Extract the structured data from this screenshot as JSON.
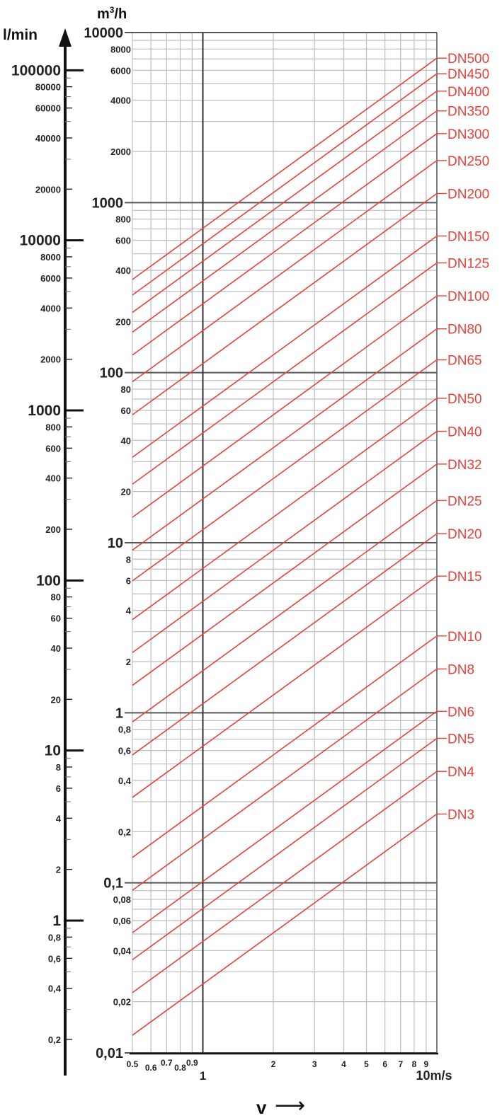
{
  "chart_data": {
    "type": "line",
    "x_scale": "log",
    "y_scale": "log",
    "xlim": [
      0.5,
      10
    ],
    "ylim": [
      0.01,
      10000
    ],
    "grid": true,
    "axes": {
      "flow_m3h_label": "m³/h",
      "flow_m3h_unit_base": "m",
      "flow_m3h_unit_sup": "3",
      "flow_m3h_unit_tail": "/h",
      "flow_lmin_label": "l/min",
      "velocity_label": "v",
      "velocity_arrow": "⟶"
    },
    "x_ticks": [
      {
        "v": 0.5,
        "label": "0.5"
      },
      {
        "v": 0.6,
        "label": "0.6"
      },
      {
        "v": 0.7,
        "label": "0.7"
      },
      {
        "v": 0.8,
        "label": "0.8"
      },
      {
        "v": 0.9,
        "label": "0.9"
      },
      {
        "v": 1,
        "label": "1"
      },
      {
        "v": 2,
        "label": "2"
      },
      {
        "v": 3,
        "label": "3"
      },
      {
        "v": 4,
        "label": "4"
      },
      {
        "v": 5,
        "label": "5"
      },
      {
        "v": 6,
        "label": "6"
      },
      {
        "v": 7,
        "label": "7"
      },
      {
        "v": 8,
        "label": "8"
      },
      {
        "v": 9,
        "label": "9"
      },
      {
        "v": 10,
        "label": "10m/s"
      }
    ],
    "y_ticks_m3h": [
      {
        "v": 10000,
        "label": "10000",
        "major": true
      },
      {
        "v": 8000,
        "label": "8000"
      },
      {
        "v": 6000,
        "label": "6000"
      },
      {
        "v": 4000,
        "label": "4000"
      },
      {
        "v": 2000,
        "label": "2000"
      },
      {
        "v": 1000,
        "label": "1000",
        "major": true
      },
      {
        "v": 800,
        "label": "800"
      },
      {
        "v": 600,
        "label": "600"
      },
      {
        "v": 400,
        "label": "400"
      },
      {
        "v": 200,
        "label": "200"
      },
      {
        "v": 100,
        "label": "100",
        "major": true
      },
      {
        "v": 80,
        "label": "80"
      },
      {
        "v": 60,
        "label": "60"
      },
      {
        "v": 40,
        "label": "40"
      },
      {
        "v": 20,
        "label": "20"
      },
      {
        "v": 10,
        "label": "10",
        "major": true
      },
      {
        "v": 8,
        "label": "8"
      },
      {
        "v": 6,
        "label": "6"
      },
      {
        "v": 4,
        "label": "4"
      },
      {
        "v": 2,
        "label": "2"
      },
      {
        "v": 1,
        "label": "1",
        "major": true
      },
      {
        "v": 0.8,
        "label": "0,8"
      },
      {
        "v": 0.6,
        "label": "0,6"
      },
      {
        "v": 0.4,
        "label": "0,4"
      },
      {
        "v": 0.2,
        "label": "0,2"
      },
      {
        "v": 0.1,
        "label": "0,1",
        "major": true
      },
      {
        "v": 0.08,
        "label": "0,08"
      },
      {
        "v": 0.06,
        "label": "0,06"
      },
      {
        "v": 0.04,
        "label": "0,04"
      },
      {
        "v": 0.02,
        "label": "0,02"
      },
      {
        "v": 0.01,
        "label": "0,01",
        "major": true
      }
    ],
    "y_ticks_lmin": [
      {
        "v": 100000,
        "label": "100000",
        "major": true
      },
      {
        "v": 80000,
        "label": "80000"
      },
      {
        "v": 60000,
        "label": "60000"
      },
      {
        "v": 40000,
        "label": "40000"
      },
      {
        "v": 20000,
        "label": "20000"
      },
      {
        "v": 10000,
        "label": "10000",
        "major": true
      },
      {
        "v": 8000,
        "label": "8000"
      },
      {
        "v": 6000,
        "label": "6000"
      },
      {
        "v": 4000,
        "label": "4000"
      },
      {
        "v": 2000,
        "label": "2000"
      },
      {
        "v": 1000,
        "label": "1000",
        "major": true
      },
      {
        "v": 800,
        "label": "800"
      },
      {
        "v": 600,
        "label": "600"
      },
      {
        "v": 400,
        "label": "400"
      },
      {
        "v": 200,
        "label": "200"
      },
      {
        "v": 100,
        "label": "100",
        "major": true
      },
      {
        "v": 80,
        "label": "80"
      },
      {
        "v": 60,
        "label": "60"
      },
      {
        "v": 40,
        "label": "40"
      },
      {
        "v": 20,
        "label": "20"
      },
      {
        "v": 10,
        "label": "10",
        "major": true
      },
      {
        "v": 8,
        "label": "8"
      },
      {
        "v": 6,
        "label": "6"
      },
      {
        "v": 4,
        "label": "4"
      },
      {
        "v": 2,
        "label": "2"
      },
      {
        "v": 1,
        "label": "1",
        "major": true
      },
      {
        "v": 0.8,
        "label": "0,8"
      },
      {
        "v": 0.6,
        "label": "0,6"
      },
      {
        "v": 0.4,
        "label": "0,4"
      },
      {
        "v": 0.2,
        "label": "0,2"
      }
    ],
    "series": [
      {
        "name": "DN500",
        "points": [
          [
            0.5,
            353
          ],
          [
            10,
            7069
          ]
        ]
      },
      {
        "name": "DN450",
        "points": [
          [
            0.5,
            286
          ],
          [
            10,
            5726
          ]
        ]
      },
      {
        "name": "DN400",
        "points": [
          [
            0.5,
            226
          ],
          [
            10,
            4524
          ]
        ]
      },
      {
        "name": "DN350",
        "points": [
          [
            0.5,
            173
          ],
          [
            10,
            3464
          ]
        ]
      },
      {
        "name": "DN300",
        "points": [
          [
            0.5,
            127
          ],
          [
            10,
            2545
          ]
        ]
      },
      {
        "name": "DN250",
        "points": [
          [
            0.5,
            88.4
          ],
          [
            10,
            1767
          ]
        ]
      },
      {
        "name": "DN200",
        "points": [
          [
            0.5,
            56.5
          ],
          [
            10,
            1131
          ]
        ]
      },
      {
        "name": "DN150",
        "points": [
          [
            0.5,
            31.8
          ],
          [
            10,
            636
          ]
        ]
      },
      {
        "name": "DN125",
        "points": [
          [
            0.5,
            22.1
          ],
          [
            10,
            442
          ]
        ]
      },
      {
        "name": "DN100",
        "points": [
          [
            0.5,
            14.1
          ],
          [
            10,
            283
          ]
        ]
      },
      {
        "name": "DN80",
        "points": [
          [
            0.5,
            9.05
          ],
          [
            10,
            181
          ]
        ]
      },
      {
        "name": "DN65",
        "points": [
          [
            0.5,
            5.97
          ],
          [
            10,
            119
          ]
        ]
      },
      {
        "name": "DN50",
        "points": [
          [
            0.5,
            3.53
          ],
          [
            10,
            70.7
          ]
        ]
      },
      {
        "name": "DN40",
        "points": [
          [
            0.5,
            2.26
          ],
          [
            10,
            45.2
          ]
        ]
      },
      {
        "name": "DN32",
        "points": [
          [
            0.5,
            1.45
          ],
          [
            10,
            29.0
          ]
        ]
      },
      {
        "name": "DN25",
        "points": [
          [
            0.5,
            0.884
          ],
          [
            10,
            17.7
          ]
        ]
      },
      {
        "name": "DN20",
        "points": [
          [
            0.5,
            0.565
          ],
          [
            10,
            11.3
          ]
        ]
      },
      {
        "name": "DN15",
        "points": [
          [
            0.5,
            0.318
          ],
          [
            10,
            6.36
          ]
        ]
      },
      {
        "name": "DN10",
        "points": [
          [
            0.5,
            0.141
          ],
          [
            10,
            2.83
          ]
        ]
      },
      {
        "name": "DN8",
        "points": [
          [
            0.5,
            0.0905
          ],
          [
            10,
            1.81
          ]
        ]
      },
      {
        "name": "DN6",
        "points": [
          [
            0.5,
            0.0509
          ],
          [
            10,
            1.02
          ]
        ]
      },
      {
        "name": "DN5",
        "points": [
          [
            0.5,
            0.0353
          ],
          [
            10,
            0.707
          ]
        ]
      },
      {
        "name": "DN4",
        "points": [
          [
            0.5,
            0.0226
          ],
          [
            10,
            0.452
          ]
        ]
      },
      {
        "name": "DN3",
        "points": [
          [
            0.5,
            0.0127
          ],
          [
            10,
            0.254
          ]
        ]
      }
    ],
    "colors": {
      "series": "#e8413a",
      "axis": "#111111",
      "major_grid": "#555555",
      "minor_grid": "#bdbdbd"
    }
  }
}
